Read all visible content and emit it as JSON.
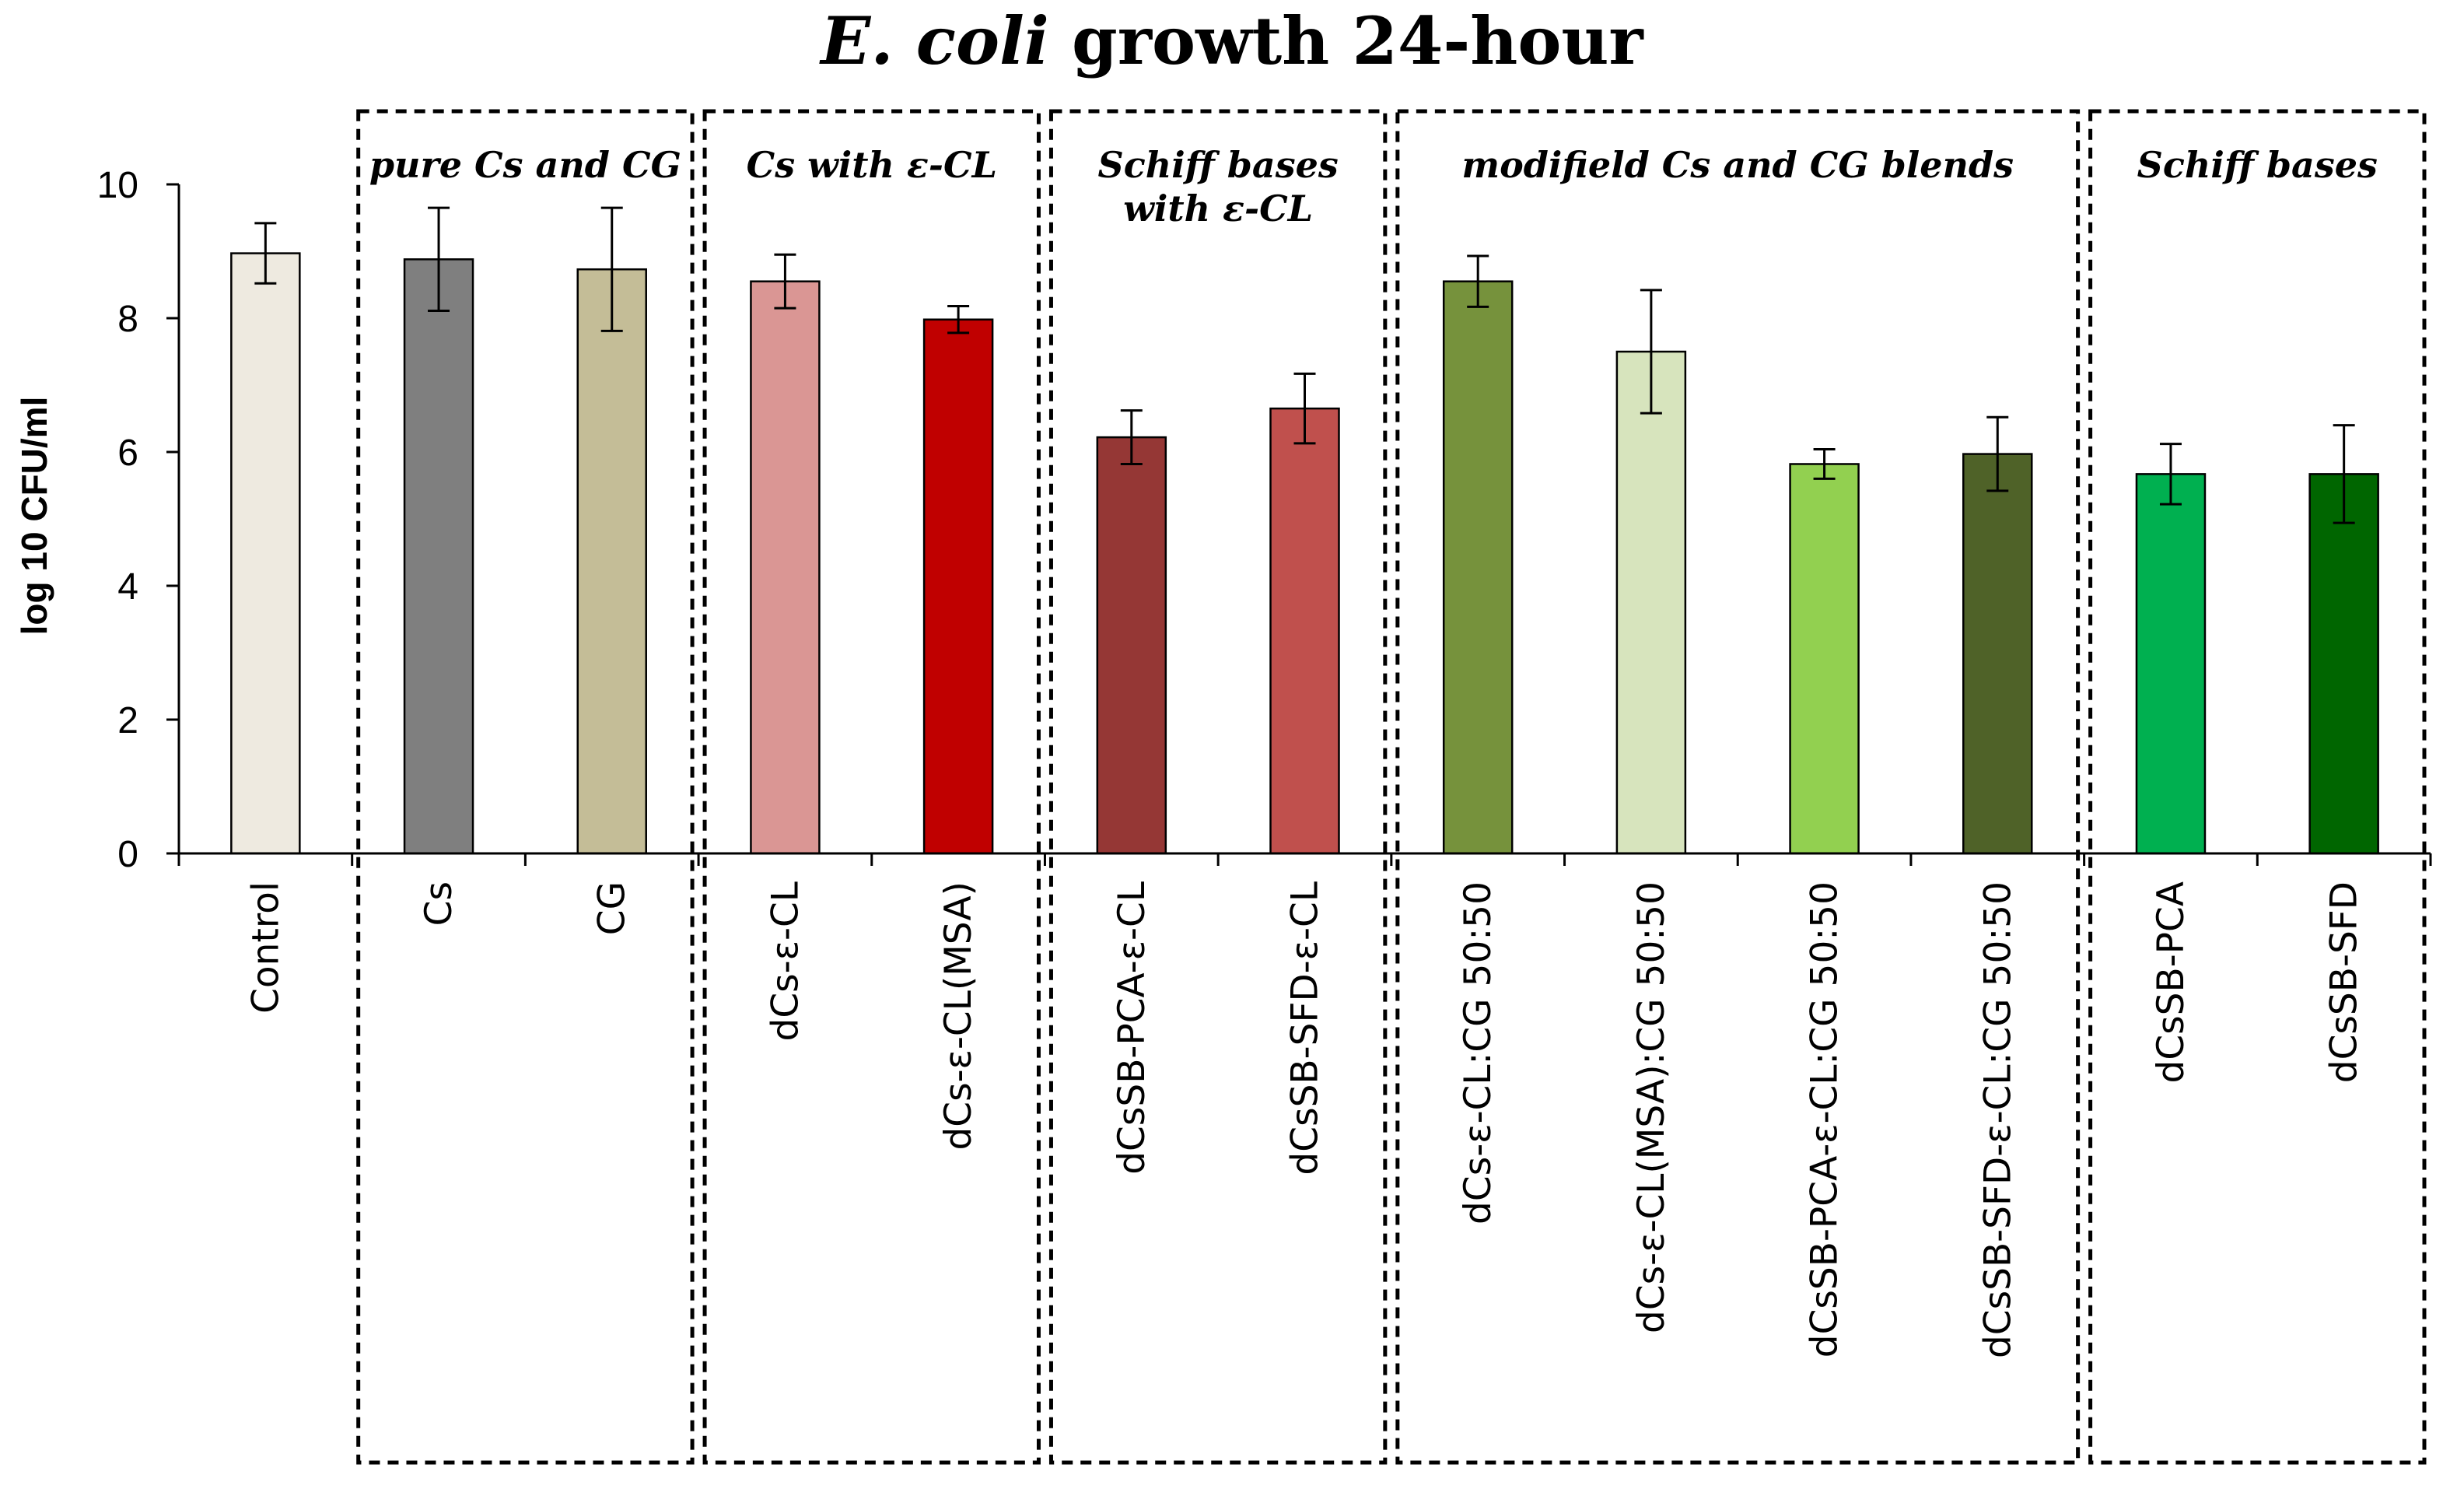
{
  "chart_data": {
    "type": "bar",
    "title_italic": "E. coli",
    "title_rest": " growth 24-hour",
    "xlabel": "",
    "ylabel": "log 10 CFU/ml",
    "ylim": [
      0,
      10
    ],
    "yticks": [
      "0",
      "2",
      "4",
      "6",
      "8",
      "10"
    ],
    "grid": false,
    "categories": [
      "Control",
      "Cs",
      "CG",
      "dCs-ε-CL",
      "dCs-ε-CL(MSA)",
      "dCsSB-PCA-ε-CL",
      "dCsSB-SFD-ε-CL",
      "dCs-ε-CL:CG 50:50",
      "dCs-ε-CL(MSA):CG 50:50",
      "dCsSB-PCA-ε-CL:CG 50:50",
      "dCsSB-SFD-ε-CL:CG 50:50",
      "dCsSB-PCA",
      "dCsSB-SFD"
    ],
    "values": [
      8.97,
      8.88,
      8.73,
      8.55,
      7.98,
      6.22,
      6.65,
      8.55,
      7.5,
      5.82,
      5.97,
      5.67,
      5.67
    ],
    "errors": [
      0.45,
      0.77,
      0.92,
      0.4,
      0.2,
      0.4,
      0.52,
      0.38,
      0.92,
      0.22,
      0.55,
      0.45,
      0.73
    ],
    "colors": [
      "#EEEAE0",
      "#7F7F7F",
      "#C4BD97",
      "#DA9694",
      "#C00000",
      "#953735",
      "#C0504D",
      "#76923C",
      "#D7E4BD",
      "#92D050",
      "#4F6228",
      "#00B050",
      "#006600"
    ],
    "groups": [
      {
        "lines": [
          "pure Cs and CG"
        ],
        "start": 1,
        "end": 2
      },
      {
        "lines": [
          "Cs with ε-CL"
        ],
        "start": 3,
        "end": 4
      },
      {
        "lines": [
          "Schiff bases",
          "with ε-CL"
        ],
        "start": 5,
        "end": 6
      },
      {
        "lines": [
          "modifield Cs and CG blends"
        ],
        "start": 7,
        "end": 10
      },
      {
        "lines": [
          "Schiff bases"
        ],
        "start": 11,
        "end": 12
      }
    ]
  }
}
